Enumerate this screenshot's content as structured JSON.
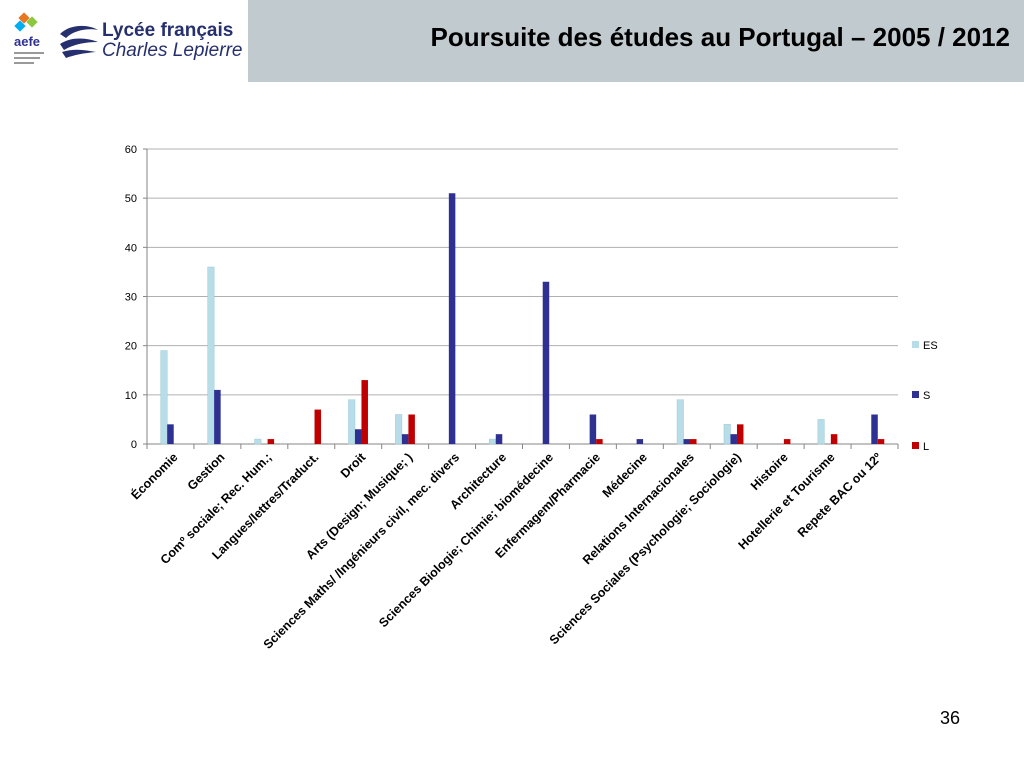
{
  "header": {
    "title": "Poursuite des études au Portugal – 2005 / 2012",
    "logo_aefe_text": "aefe",
    "school_name_line1": "Lycée français",
    "school_name_line2": "Charles Lepierre"
  },
  "footer": {
    "page_number": "36"
  },
  "colors": {
    "ES": "#b7dde8",
    "S": "#2e3192",
    "L": "#c00000",
    "title_bar": "#c1cace"
  },
  "chart_data": {
    "type": "bar",
    "title": "",
    "xlabel": "",
    "ylabel": "",
    "ylim": [
      0,
      60
    ],
    "yticks": [
      0,
      10,
      20,
      30,
      40,
      50,
      60
    ],
    "grid": true,
    "legend_position": "right",
    "categories": [
      "Économie",
      "Gestion",
      "Comº sociale; Rec. Hum.;",
      "Langues/lettres/Traduct.",
      "Droit",
      "Arts (Design; Musique; )",
      "Sciences Maths/ /Ingénieurs civil, mec. divers",
      "Architecture",
      "Sciences Biologie; Chimie; biomédecine",
      "Enfermagem/Pharmacie",
      "Médecine",
      "Relations Internacionales",
      "Sciences Sociales (Psychologie; Sociologie)",
      "Histoire",
      "Hotellerie et Tourisme",
      "Repete BAC ou 12º"
    ],
    "series": [
      {
        "name": "ES",
        "values": [
          19,
          36,
          1,
          0,
          9,
          6,
          0,
          1,
          0,
          0,
          0,
          9,
          4,
          0,
          5,
          0
        ]
      },
      {
        "name": "S",
        "values": [
          4,
          11,
          0,
          0,
          3,
          2,
          51,
          2,
          33,
          6,
          1,
          1,
          2,
          0,
          0,
          6
        ]
      },
      {
        "name": "L",
        "values": [
          0,
          0,
          1,
          7,
          13,
          6,
          0,
          0,
          0,
          1,
          0,
          1,
          4,
          1,
          2,
          1
        ]
      }
    ]
  }
}
